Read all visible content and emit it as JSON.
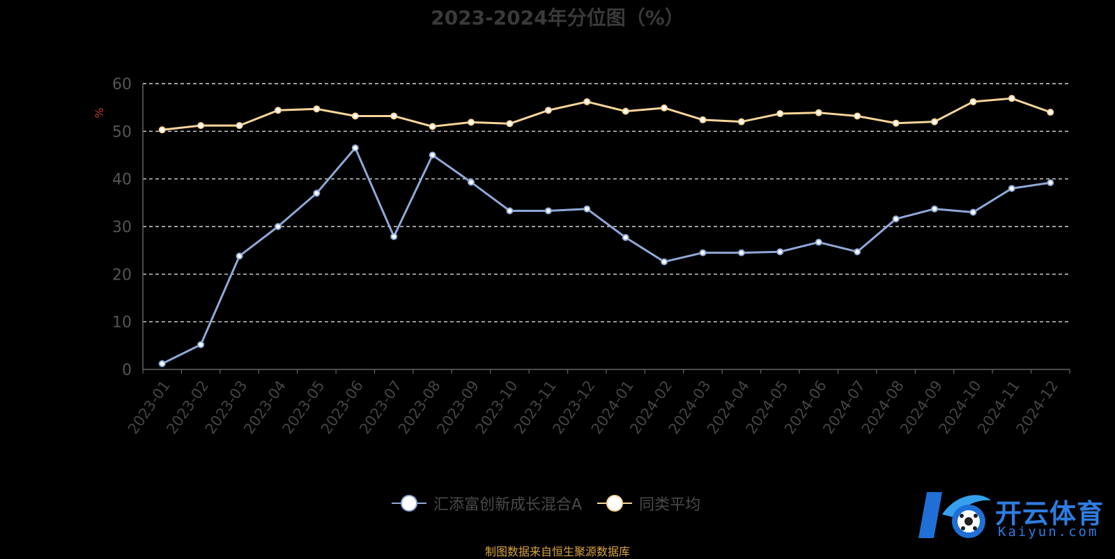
{
  "chart_data": {
    "type": "line",
    "title": "2023-2024年分位图（%）",
    "ylabel": "%",
    "ylim": [
      0,
      60
    ],
    "yticks": [
      0,
      10,
      20,
      30,
      40,
      50,
      60
    ],
    "grid": true,
    "legend_position": "bottom",
    "categories": [
      "2023-01",
      "2023-02",
      "2023-03",
      "2023-04",
      "2023-05",
      "2023-06",
      "2023-07",
      "2023-08",
      "2023-09",
      "2023-10",
      "2023-11",
      "2023-12",
      "2024-01",
      "2024-02",
      "2024-03",
      "2024-04",
      "2024-05",
      "2024-06",
      "2024-07",
      "2024-08",
      "2024-09",
      "2024-10",
      "2024-11",
      "2024-12"
    ],
    "series": [
      {
        "name": "汇添富创新成长混合A",
        "color": "#8fa9d8",
        "values": [
          1.2,
          5.2,
          23.8,
          30.0,
          37.0,
          46.5,
          27.9,
          45.0,
          39.3,
          33.3,
          33.3,
          33.7,
          27.7,
          22.6,
          24.5,
          24.5,
          24.7,
          26.7,
          24.7,
          31.6,
          33.7,
          33.0,
          38.0,
          39.2
        ]
      },
      {
        "name": "同类平均",
        "color": "#f8d59a",
        "values": [
          50.3,
          51.2,
          51.2,
          54.4,
          54.7,
          53.2,
          53.2,
          51.0,
          51.9,
          51.6,
          54.4,
          56.2,
          54.2,
          54.9,
          52.4,
          52.0,
          53.7,
          53.9,
          53.2,
          51.7,
          52.0,
          56.2,
          56.9,
          54.0
        ]
      }
    ]
  },
  "source_note": "制图数据来自恒生聚源数据库",
  "watermark": {
    "brand": "开云体育",
    "domain": "Kaiyun.com"
  }
}
